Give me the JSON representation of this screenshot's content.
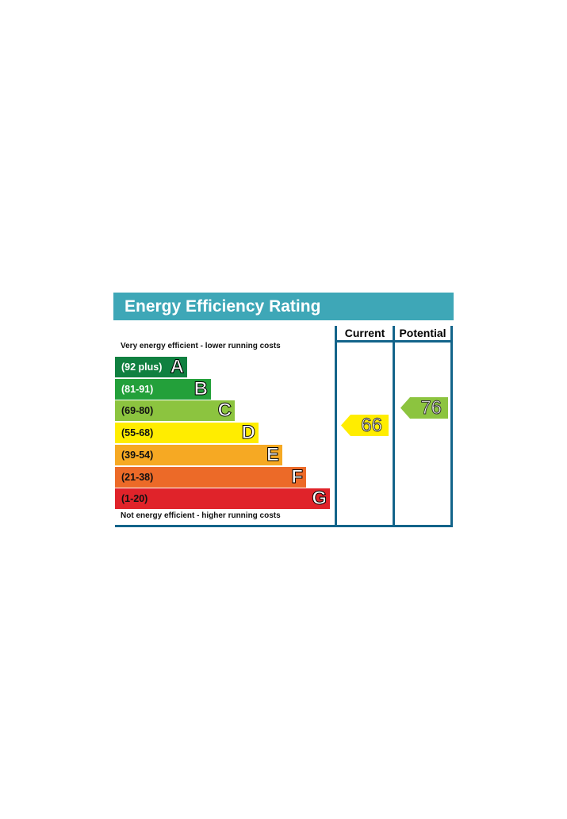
{
  "title": "Energy Efficiency Rating",
  "columns": {
    "current": "Current",
    "potential": "Potential"
  },
  "top_note": "Very energy efficient - lower running costs",
  "bottom_note": "Not energy efficient - higher running costs",
  "bands": [
    {
      "range": "(92 plus)",
      "letter": "A",
      "color": "#108040",
      "text_color": "#ffffff"
    },
    {
      "range": "(81-91)",
      "letter": "B",
      "color": "#23a03a",
      "text_color": "#ffffff"
    },
    {
      "range": "(69-80)",
      "letter": "C",
      "color": "#8cc43f",
      "text_color": "#111111"
    },
    {
      "range": "(55-68)",
      "letter": "D",
      "color": "#ffed00",
      "text_color": "#111111"
    },
    {
      "range": "(39-54)",
      "letter": "E",
      "color": "#f6a923",
      "text_color": "#111111"
    },
    {
      "range": "(21-38)",
      "letter": "F",
      "color": "#ec6a28",
      "text_color": "#111111"
    },
    {
      "range": "(1-20)",
      "letter": "G",
      "color": "#e0232a",
      "text_color": "#111111"
    }
  ],
  "current": {
    "value": "66",
    "color": "#ffed00"
  },
  "potential": {
    "value": "76",
    "color": "#8cc43f"
  }
}
